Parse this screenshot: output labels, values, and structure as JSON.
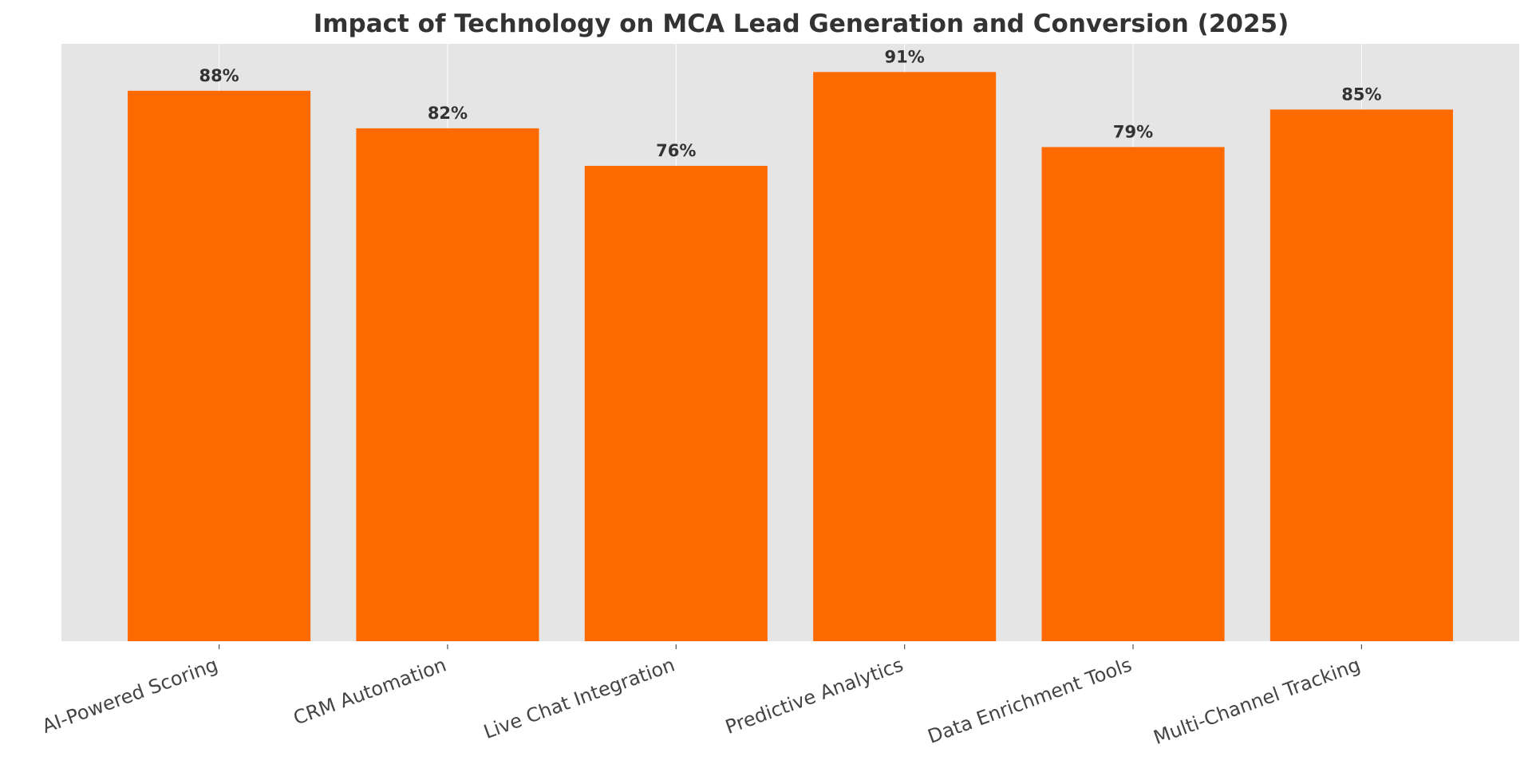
{
  "chart_data": {
    "type": "bar",
    "title": "Impact of Technology on MCA Lead Generation and Conversion (2025)",
    "xlabel": "",
    "ylabel": "",
    "categories": [
      "AI-Powered Scoring",
      "CRM Automation",
      "Live Chat Integration",
      "Predictive Analytics",
      "Data Enrichment Tools",
      "Multi-Channel Tracking"
    ],
    "values": [
      88,
      82,
      76,
      91,
      79,
      85
    ],
    "value_labels": [
      "88%",
      "82%",
      "76%",
      "91%",
      "79%",
      "85%"
    ],
    "ylim": [
      0,
      95.5
    ],
    "y_ticks_visible": false,
    "grid": "vertical",
    "bar_color": "#ff6a00",
    "background_color": "#e5e5e5",
    "legend": "none"
  }
}
